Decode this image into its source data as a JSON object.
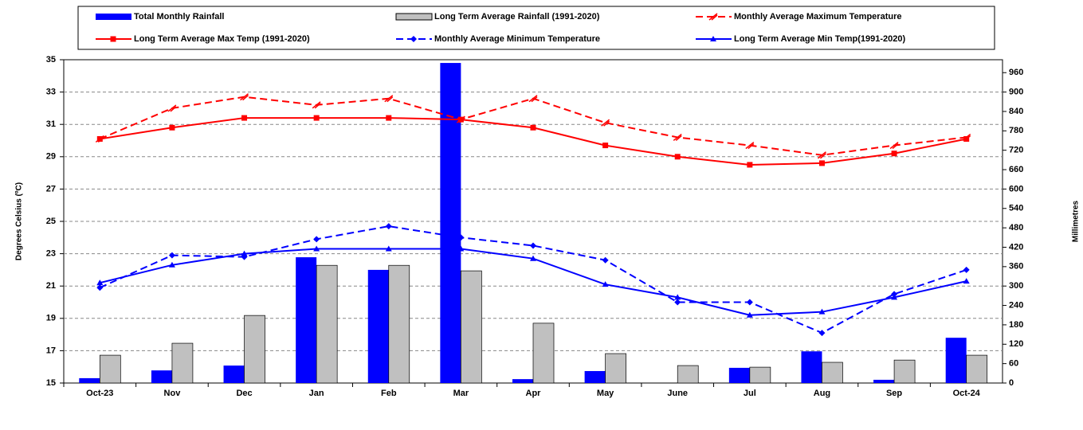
{
  "chart_data": {
    "type": "bar",
    "y_label": "Degrees Celsius (ºC)",
    "y2_label": "Millimetres",
    "categories": [
      "Oct-23",
      "Nov",
      "Dec",
      "Jan",
      "Feb",
      "Mar",
      "Apr",
      "May",
      "June",
      "Jul",
      "Aug",
      "Sep",
      "Oct-24"
    ],
    "ylim": [
      15,
      35
    ],
    "yticks": [
      15,
      17,
      19,
      21,
      23,
      25,
      27,
      29,
      31,
      33,
      35
    ],
    "y2lim": [
      0,
      1000
    ],
    "y2ticks": [
      0,
      60,
      120,
      180,
      240,
      300,
      360,
      420,
      480,
      540,
      600,
      660,
      720,
      780,
      840,
      900,
      960
    ],
    "grid": true,
    "series": [
      {
        "name": "Total Monthly Rainfall",
        "type": "bar",
        "axis": "y2",
        "color": "#0000ff",
        "values": [
          15,
          39,
          54,
          389,
          350,
          990,
          12,
          37,
          0,
          47,
          98,
          10,
          140
        ]
      },
      {
        "name": "Long Term Average Rainfall (1991-2020)",
        "type": "bar",
        "axis": "y2",
        "color": "#c0c0c0",
        "values": [
          86,
          123,
          209,
          364,
          364,
          347,
          185,
          91,
          54,
          49,
          64,
          71,
          86
        ]
      },
      {
        "name": "Monthly Average Maximum Temperature",
        "type": "line",
        "color": "#ff0000",
        "dashed": true,
        "marker": "slash",
        "values": [
          30.1,
          32.0,
          32.7,
          32.2,
          32.6,
          31.3,
          32.6,
          31.1,
          30.2,
          29.7,
          29.1,
          29.7,
          30.2
        ]
      },
      {
        "name": "Long Term Average Max Temp (1991-2020)",
        "type": "line",
        "color": "#ff0000",
        "dashed": false,
        "marker": "square",
        "values": [
          30.1,
          30.8,
          31.4,
          31.4,
          31.4,
          31.3,
          30.8,
          29.7,
          29.0,
          28.5,
          28.6,
          29.2,
          30.1
        ]
      },
      {
        "name": "Monthly Average Minimum Temperature",
        "type": "line",
        "color": "#0000ff",
        "dashed": true,
        "marker": "diamond",
        "values": [
          20.9,
          22.9,
          22.8,
          23.9,
          24.7,
          24.0,
          23.5,
          22.6,
          20.0,
          20.0,
          18.1,
          20.5,
          22.0
        ]
      },
      {
        "name": "Long Term Average Min Temp(1991-2020)",
        "type": "line",
        "color": "#0000ff",
        "dashed": false,
        "marker": "triangle",
        "values": [
          21.2,
          22.3,
          23.0,
          23.3,
          23.3,
          23.3,
          22.7,
          21.1,
          20.3,
          19.2,
          19.4,
          20.3,
          21.3
        ]
      }
    ]
  }
}
